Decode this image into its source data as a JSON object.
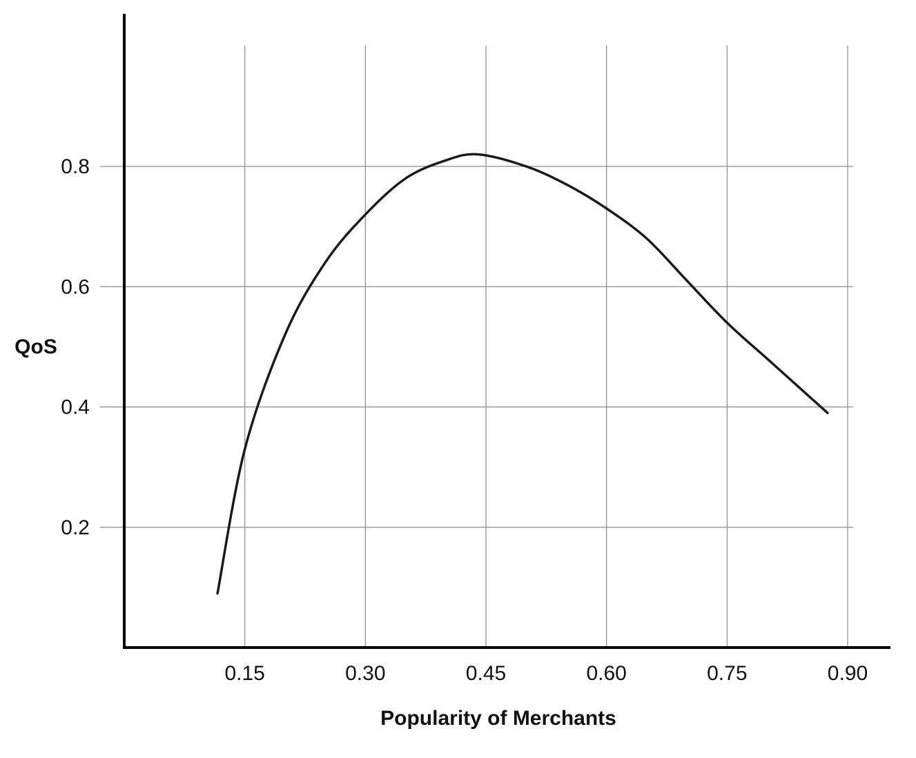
{
  "chart_data": {
    "type": "line",
    "title": "",
    "xlabel": "Popularity of Merchants",
    "ylabel": "QoS",
    "xlim": [
      0.0,
      0.9
    ],
    "ylim": [
      0.0,
      1.0
    ],
    "x_ticks": [
      0.15,
      0.3,
      0.45,
      0.6,
      0.75,
      0.9
    ],
    "x_tick_labels": [
      "0.15",
      "0.30",
      "0.45",
      "0.60",
      "0.75",
      "0.90"
    ],
    "y_ticks": [
      0.2,
      0.4,
      0.6,
      0.8
    ],
    "y_tick_labels": [
      "0.2",
      "0.4",
      "0.6",
      "0.8"
    ],
    "grid": true,
    "legend": "none",
    "colors": {
      "line": "#1a1a1a",
      "grid": "#8a8a8a",
      "axis": "#000000"
    },
    "series": [
      {
        "x": [
          0.116,
          0.15,
          0.2,
          0.25,
          0.3,
          0.35,
          0.4,
          0.44,
          0.5,
          0.55,
          0.6,
          0.65,
          0.7,
          0.75,
          0.8,
          0.85,
          0.875
        ],
        "y": [
          0.09,
          0.33,
          0.52,
          0.64,
          0.72,
          0.78,
          0.81,
          0.82,
          0.8,
          0.77,
          0.73,
          0.68,
          0.61,
          0.54,
          0.48,
          0.42,
          0.39
        ]
      }
    ]
  }
}
